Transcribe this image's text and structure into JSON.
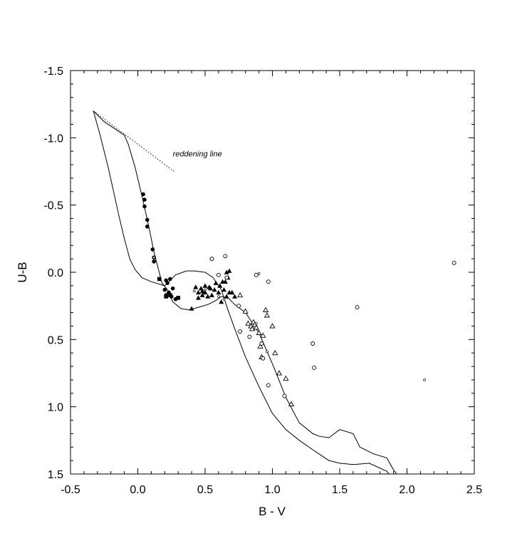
{
  "chart_data": {
    "type": "scatter",
    "title": "",
    "xlabel": "B - V",
    "ylabel": "U-B",
    "xlim": [
      -0.5,
      2.5
    ],
    "ylim": [
      1.5,
      -1.5
    ],
    "y_inverted": true,
    "x_ticks": [
      -0.5,
      0.0,
      0.5,
      1.0,
      1.5,
      2.0,
      2.5
    ],
    "x_tick_labels": [
      "-0.5",
      "0.0",
      "0.5",
      "1.0",
      "1.5",
      "2.0",
      "2.5"
    ],
    "y_ticks": [
      -1.5,
      -1.0,
      -0.5,
      0.0,
      0.5,
      1.0,
      1.5
    ],
    "y_tick_labels": [
      "-1.5",
      "-1.0",
      "-0.5",
      "0.0",
      "0.5",
      "1.0",
      "1.5"
    ],
    "grid": false,
    "annotations": [
      {
        "text": "reddening line",
        "x": 0.26,
        "y": -0.86
      }
    ],
    "lines": [
      {
        "style": "solid",
        "points": [
          [
            -0.33,
            -1.2
          ],
          [
            -0.28,
            -1.02
          ],
          [
            -0.22,
            -0.78
          ],
          [
            -0.18,
            -0.6
          ],
          [
            -0.14,
            -0.42
          ],
          [
            -0.1,
            -0.25
          ],
          [
            -0.06,
            -0.1
          ],
          [
            -0.02,
            -0.02
          ],
          [
            0.03,
            0.04
          ],
          [
            0.1,
            0.07
          ],
          [
            0.2,
            0.1
          ],
          [
            0.28,
            0.02
          ],
          [
            0.36,
            -0.01
          ],
          [
            0.42,
            -0.01
          ],
          [
            0.5,
            0.0
          ],
          [
            0.56,
            0.04
          ],
          [
            0.62,
            0.13
          ],
          [
            0.67,
            0.28
          ],
          [
            0.72,
            0.42
          ],
          [
            0.8,
            0.63
          ],
          [
            0.9,
            0.85
          ],
          [
            1.0,
            1.05
          ],
          [
            1.1,
            1.17
          ],
          [
            1.2,
            1.25
          ],
          [
            1.3,
            1.32
          ],
          [
            1.42,
            1.4
          ],
          [
            1.5,
            1.42
          ],
          [
            1.6,
            1.43
          ],
          [
            1.72,
            1.42
          ],
          [
            1.85,
            1.48
          ],
          [
            1.95,
            1.6
          ]
        ]
      },
      {
        "style": "solid",
        "points": [
          [
            -0.33,
            -1.2
          ],
          [
            -0.25,
            -1.12
          ],
          [
            -0.1,
            -1.02
          ],
          [
            -0.07,
            -0.95
          ],
          [
            -0.02,
            -0.78
          ],
          [
            0.03,
            -0.57
          ],
          [
            0.08,
            -0.35
          ],
          [
            0.12,
            -0.15
          ],
          [
            0.18,
            0.08
          ],
          [
            0.22,
            0.13
          ],
          [
            0.26,
            0.22
          ],
          [
            0.32,
            0.27
          ],
          [
            0.38,
            0.28
          ],
          [
            0.45,
            0.26
          ],
          [
            0.52,
            0.24
          ],
          [
            0.58,
            0.21
          ],
          [
            0.62,
            0.18
          ],
          [
            0.67,
            0.19
          ],
          [
            0.72,
            0.24
          ],
          [
            0.8,
            0.3
          ],
          [
            0.9,
            0.45
          ],
          [
            1.0,
            0.68
          ],
          [
            1.1,
            0.93
          ],
          [
            1.2,
            1.12
          ],
          [
            1.3,
            1.2
          ],
          [
            1.35,
            1.22
          ],
          [
            1.42,
            1.23
          ],
          [
            1.5,
            1.17
          ],
          [
            1.6,
            1.2
          ],
          [
            1.65,
            1.3
          ],
          [
            1.75,
            1.35
          ],
          [
            1.85,
            1.38
          ],
          [
            1.9,
            1.47
          ],
          [
            2.0,
            1.6
          ]
        ]
      },
      {
        "style": "dotted",
        "label": "reddening line",
        "points": [
          [
            -0.33,
            -1.2
          ],
          [
            0.27,
            -0.75
          ]
        ]
      }
    ],
    "series": [
      {
        "marker": "filled-circle",
        "x": [
          0.04,
          0.05,
          0.05,
          0.07,
          0.07,
          0.11,
          0.12,
          0.12,
          0.21,
          0.22,
          0.23,
          0.24,
          0.25,
          0.26,
          0.28,
          0.3,
          0.2,
          0.21
        ],
        "y": [
          -0.58,
          -0.54,
          -0.49,
          -0.39,
          -0.34,
          -0.17,
          -0.11,
          -0.08,
          0.06,
          0.08,
          0.15,
          0.05,
          0.18,
          0.12,
          0.2,
          0.19,
          0.13,
          0.17
        ]
      },
      {
        "marker": "filled-square",
        "x": [
          0.16,
          0.21,
          0.24,
          0.3
        ],
        "y": [
          0.05,
          0.18,
          0.17,
          0.19
        ]
      },
      {
        "marker": "filled-triangle",
        "x": [
          0.4,
          0.43,
          0.45,
          0.47,
          0.48,
          0.5,
          0.5,
          0.52,
          0.54,
          0.55,
          0.57,
          0.58,
          0.6,
          0.61,
          0.62,
          0.63,
          0.64,
          0.65,
          0.66,
          0.66,
          0.67,
          0.68,
          0.68,
          0.7,
          0.72,
          0.45,
          0.48,
          0.53
        ],
        "y": [
          0.27,
          0.11,
          0.15,
          0.12,
          0.17,
          0.1,
          0.15,
          0.18,
          0.12,
          0.17,
          0.13,
          0.08,
          0.15,
          0.1,
          0.22,
          0.07,
          0.13,
          0.07,
          0.0,
          0.18,
          0.04,
          -0.01,
          0.15,
          0.15,
          0.18,
          0.19,
          0.14,
          0.11
        ]
      },
      {
        "marker": "open-triangle",
        "x": [
          0.76,
          0.8,
          0.82,
          0.84,
          0.85,
          0.86,
          0.87,
          0.88,
          0.9,
          0.91,
          0.92,
          0.93,
          0.95,
          0.96,
          1.0,
          1.02,
          1.05,
          1.1,
          1.14
        ],
        "y": [
          0.17,
          0.29,
          0.38,
          0.4,
          0.42,
          0.37,
          0.39,
          0.41,
          0.45,
          0.55,
          0.63,
          0.47,
          0.28,
          0.32,
          0.4,
          0.6,
          0.75,
          0.79,
          0.98
        ]
      },
      {
        "marker": "open-circle",
        "x": [
          0.55,
          0.6,
          0.65,
          0.66,
          0.76,
          0.88,
          0.92,
          0.97,
          1.3,
          1.31,
          1.09,
          0.97,
          1.63,
          2.35,
          0.93,
          0.83,
          0.75
        ],
        "y": [
          -0.1,
          0.02,
          -0.12,
          0.04,
          0.44,
          0.02,
          0.53,
          0.07,
          0.53,
          0.71,
          0.92,
          0.84,
          0.26,
          -0.07,
          0.64,
          0.48,
          0.25
        ]
      }
    ],
    "small_points": {
      "x": [
        0.12,
        0.42,
        0.5,
        0.6,
        0.64,
        0.88,
        0.9,
        0.96,
        2.13
      ],
      "y": [
        -0.11,
        0.14,
        0.13,
        0.18,
        0.2,
        0.38,
        0.01,
        0.59,
        0.8
      ]
    }
  }
}
